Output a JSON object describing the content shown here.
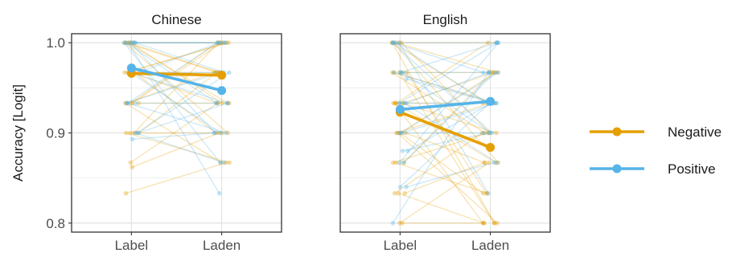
{
  "chart_data": {
    "type": "line",
    "ylabel": "Accuracy [Logit]",
    "ylim": [
      0.79,
      1.01
    ],
    "yticks": [
      0.8,
      0.9,
      1.0
    ],
    "ytick_labels": [
      "0.8",
      "0.9",
      "1.0"
    ],
    "categories": [
      "Label",
      "Laden"
    ],
    "grid": true,
    "legend_position": "right",
    "colors": {
      "Negative": "#E69F00",
      "Positive": "#56B4E9"
    },
    "panels": [
      {
        "title": "Chinese",
        "series": [
          {
            "name": "Negative",
            "values": [
              0.966,
              0.964
            ]
          },
          {
            "name": "Positive",
            "values": [
              0.972,
              0.947
            ]
          }
        ],
        "individual": {
          "Negative": [
            [
              1.0,
              1.0
            ],
            [
              1.0,
              0.967
            ],
            [
              1.0,
              0.933
            ],
            [
              1.0,
              0.9
            ],
            [
              1.0,
              1.0
            ],
            [
              0.967,
              1.0
            ],
            [
              0.967,
              0.967
            ],
            [
              0.967,
              0.933
            ],
            [
              0.967,
              0.9
            ],
            [
              0.933,
              1.0
            ],
            [
              0.933,
              0.967
            ],
            [
              0.933,
              0.933
            ],
            [
              0.933,
              0.867
            ],
            [
              0.9,
              0.967
            ],
            [
              0.9,
              0.9
            ],
            [
              0.9,
              1.0
            ],
            [
              0.9,
              0.867
            ],
            [
              0.867,
              0.933
            ],
            [
              0.862,
              0.9
            ],
            [
              0.833,
              0.867
            ],
            [
              1.0,
              0.967
            ],
            [
              0.967,
              1.0
            ],
            [
              1.0,
              0.933
            ],
            [
              0.933,
              1.0
            ]
          ],
          "Positive": [
            [
              1.0,
              1.0
            ],
            [
              1.0,
              0.967
            ],
            [
              1.0,
              0.933
            ],
            [
              1.0,
              0.9
            ],
            [
              1.0,
              0.867
            ],
            [
              1.0,
              1.0
            ],
            [
              0.967,
              1.0
            ],
            [
              0.967,
              0.967
            ],
            [
              0.967,
              0.933
            ],
            [
              0.967,
              0.9
            ],
            [
              0.933,
              1.0
            ],
            [
              0.933,
              0.933
            ],
            [
              0.933,
              0.9
            ],
            [
              0.9,
              0.967
            ],
            [
              0.9,
              0.933
            ],
            [
              0.9,
              0.867
            ],
            [
              0.893,
              0.9
            ],
            [
              1.0,
              0.833
            ],
            [
              0.933,
              0.967
            ],
            [
              1.0,
              1.0
            ]
          ]
        }
      },
      {
        "title": "English",
        "series": [
          {
            "name": "Negative",
            "values": [
              0.923,
              0.884
            ]
          },
          {
            "name": "Positive",
            "values": [
              0.926,
              0.935
            ]
          }
        ],
        "individual": {
          "Negative": [
            [
              1.0,
              0.967
            ],
            [
              1.0,
              0.933
            ],
            [
              1.0,
              0.9
            ],
            [
              1.0,
              0.867
            ],
            [
              1.0,
              1.0
            ],
            [
              0.967,
              0.967
            ],
            [
              0.967,
              0.933
            ],
            [
              0.967,
              0.833
            ],
            [
              0.967,
              0.9
            ],
            [
              0.933,
              0.967
            ],
            [
              0.933,
              0.9
            ],
            [
              0.933,
              0.867
            ],
            [
              0.933,
              0.8
            ],
            [
              0.933,
              0.933
            ],
            [
              0.9,
              0.967
            ],
            [
              0.9,
              0.867
            ],
            [
              0.9,
              0.833
            ],
            [
              0.9,
              0.933
            ],
            [
              0.867,
              0.9
            ],
            [
              0.867,
              0.833
            ],
            [
              0.833,
              0.867
            ],
            [
              0.833,
              0.9
            ],
            [
              0.8,
              0.8
            ],
            [
              0.833,
              0.8
            ],
            [
              0.8,
              0.867
            ],
            [
              1.0,
              0.8
            ],
            [
              0.967,
              0.8
            ],
            [
              0.9,
              0.8
            ],
            [
              0.867,
              0.967
            ],
            [
              0.933,
              1.0
            ]
          ],
          "Positive": [
            [
              1.0,
              1.0
            ],
            [
              1.0,
              0.967
            ],
            [
              1.0,
              0.933
            ],
            [
              1.0,
              0.9
            ],
            [
              1.0,
              0.833
            ],
            [
              0.967,
              1.0
            ],
            [
              0.967,
              0.967
            ],
            [
              0.967,
              0.933
            ],
            [
              0.967,
              0.9
            ],
            [
              0.96,
              0.933
            ],
            [
              0.933,
              1.0
            ],
            [
              0.933,
              0.967
            ],
            [
              0.933,
              0.933
            ],
            [
              0.933,
              0.867
            ],
            [
              0.9,
              0.967
            ],
            [
              0.9,
              0.933
            ],
            [
              0.9,
              0.9
            ],
            [
              0.88,
              0.933
            ],
            [
              0.88,
              0.9
            ],
            [
              0.867,
              0.967
            ],
            [
              0.84,
              0.933
            ],
            [
              0.84,
              0.867
            ],
            [
              0.8,
              0.967
            ],
            [
              0.867,
              1.0
            ]
          ]
        }
      }
    ]
  }
}
